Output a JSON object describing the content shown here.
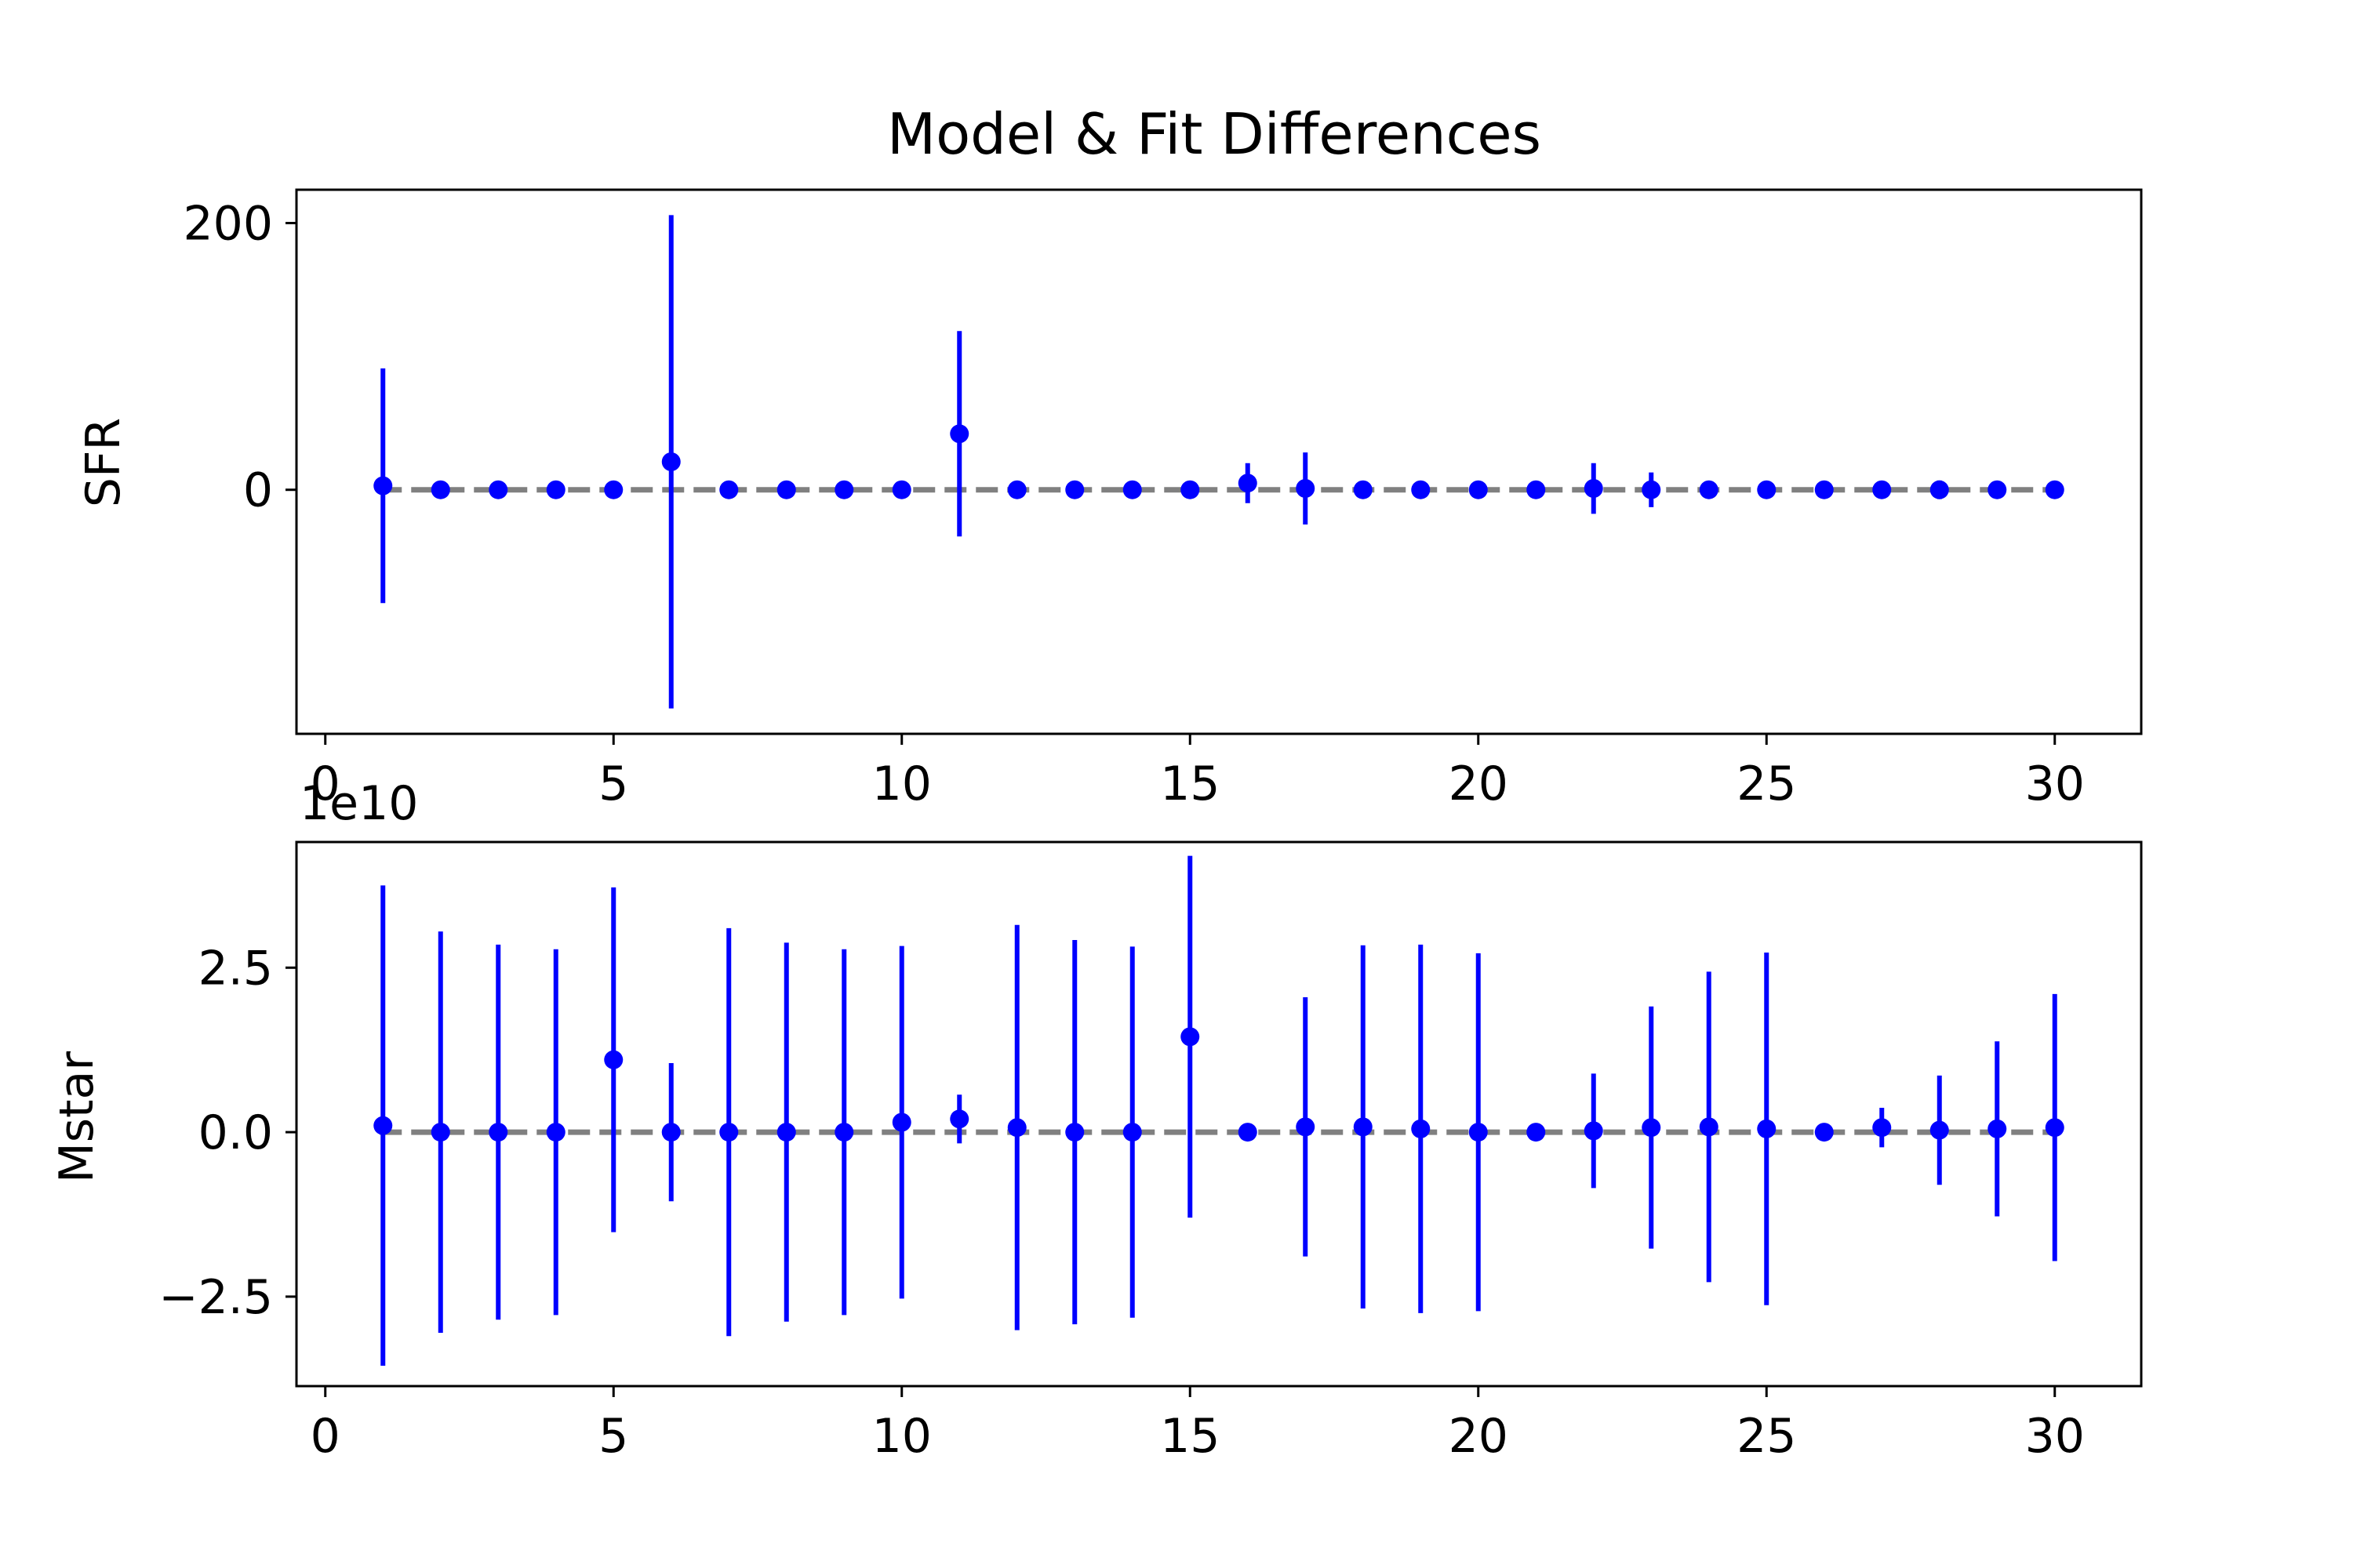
{
  "chart_data": {
    "title": "Model & Fit Differences",
    "colors": {
      "points": "#0000ff",
      "zero_line": "#808080",
      "axes": "#000000"
    },
    "x": [
      1,
      2,
      3,
      4,
      5,
      6,
      7,
      8,
      9,
      10,
      11,
      12,
      13,
      14,
      15,
      16,
      17,
      18,
      19,
      20,
      21,
      22,
      23,
      24,
      25,
      26,
      27,
      28,
      29,
      30
    ],
    "subplots": [
      {
        "type": "scatter",
        "ylabel": "SFR",
        "xlim": [
          -0.5,
          31.5
        ],
        "ylim": [
          -183,
          225
        ],
        "xticks": [
          0,
          5,
          10,
          15,
          20,
          25,
          30
        ],
        "yticks": [
          0,
          200
        ],
        "ytick_labels": [
          "0",
          "200"
        ],
        "offset_text": "",
        "reference_line": 0,
        "y": [
          3,
          0,
          0,
          0,
          0,
          21,
          0,
          0,
          0,
          0,
          42,
          0,
          0,
          0,
          0,
          5,
          1,
          0,
          0,
          0,
          0,
          1,
          0,
          0,
          0,
          0,
          0,
          0,
          0,
          0
        ],
        "err": [
          88,
          0,
          0,
          0,
          0,
          185,
          0,
          0,
          0,
          0,
          77,
          0,
          0,
          0,
          0,
          15,
          27,
          0,
          0,
          0,
          0,
          19,
          13,
          0,
          0,
          0,
          0,
          7,
          5,
          0
        ]
      },
      {
        "type": "scatter",
        "ylabel": "Mstar",
        "xlim": [
          -0.5,
          31.5
        ],
        "ylim": [
          -3.86,
          4.41
        ],
        "xticks": [
          0,
          5,
          10,
          15,
          20,
          25,
          30
        ],
        "yticks": [
          -2.5,
          0,
          2.5
        ],
        "ytick_labels": [
          "−2.5",
          "0.0",
          "2.5"
        ],
        "offset_text": "1e10",
        "reference_line": 0,
        "y": [
          0.1,
          0,
          0,
          0,
          1.1,
          0,
          0,
          0,
          0,
          0.15,
          0.2,
          0.07,
          0,
          0,
          1.45,
          0,
          0.08,
          0.08,
          0.05,
          0,
          0,
          0.02,
          0.07,
          0.08,
          0.05,
          0,
          0.07,
          0.03,
          0.05,
          0.07
        ],
        "err": [
          3.65,
          3.05,
          2.85,
          2.78,
          2.62,
          1.05,
          3.1,
          2.88,
          2.78,
          2.68,
          0.37,
          3.08,
          2.92,
          2.82,
          2.75,
          0,
          1.97,
          2.76,
          2.8,
          2.72,
          0,
          0.87,
          1.84,
          2.36,
          2.68,
          0,
          0.3,
          0.83,
          1.33,
          2.03
        ]
      }
    ]
  }
}
